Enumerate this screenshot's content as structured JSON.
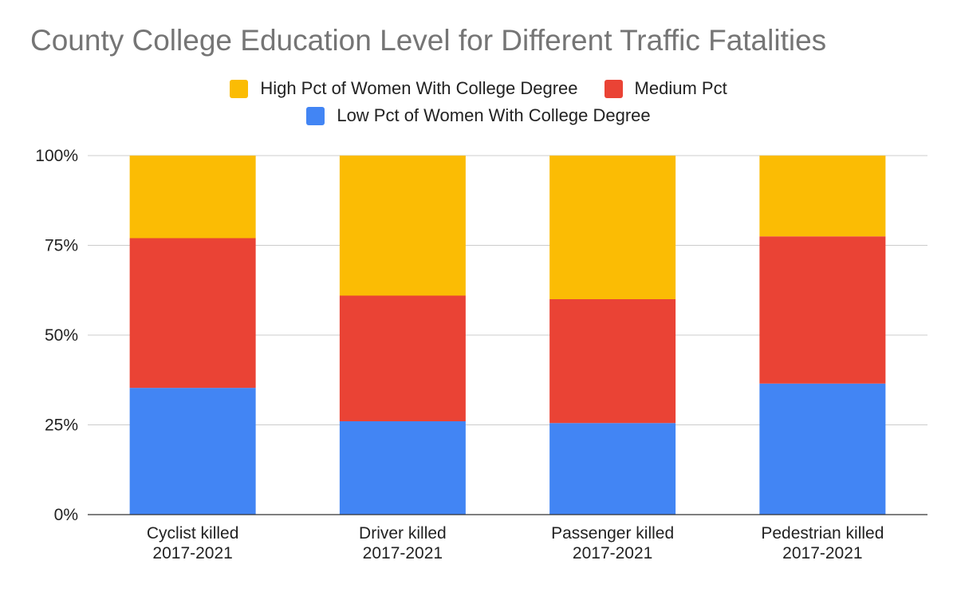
{
  "chart_data": {
    "type": "bar",
    "stacked": true,
    "normalized": true,
    "title": "County College Education Level for Different Traffic Fatalities",
    "xlabel": "",
    "ylabel": "",
    "ylim": [
      0,
      100
    ],
    "y_ticks": [
      "0%",
      "25%",
      "50%",
      "75%",
      "100%"
    ],
    "categories": [
      [
        "Cyclist killed",
        "2017-2021"
      ],
      [
        "Driver killed",
        "2017-2021"
      ],
      [
        "Passenger killed",
        "2017-2021"
      ],
      [
        "Pedestrian killed",
        "2017-2021"
      ]
    ],
    "series": [
      {
        "name": "Low Pct of Women With College Degree",
        "color": "#4285F4",
        "values": [
          35.3,
          26.0,
          25.5,
          36.5
        ]
      },
      {
        "name": "Medium Pct",
        "color": "#EA4335",
        "values": [
          41.7,
          35.0,
          34.5,
          41.0
        ]
      },
      {
        "name": "High Pct of Women With College Degree",
        "color": "#FBBC04",
        "values": [
          23.0,
          39.0,
          40.0,
          22.5
        ]
      }
    ],
    "legend": {
      "position": "top",
      "rows": [
        [
          2,
          1
        ],
        [
          0
        ]
      ]
    },
    "grid": true
  }
}
